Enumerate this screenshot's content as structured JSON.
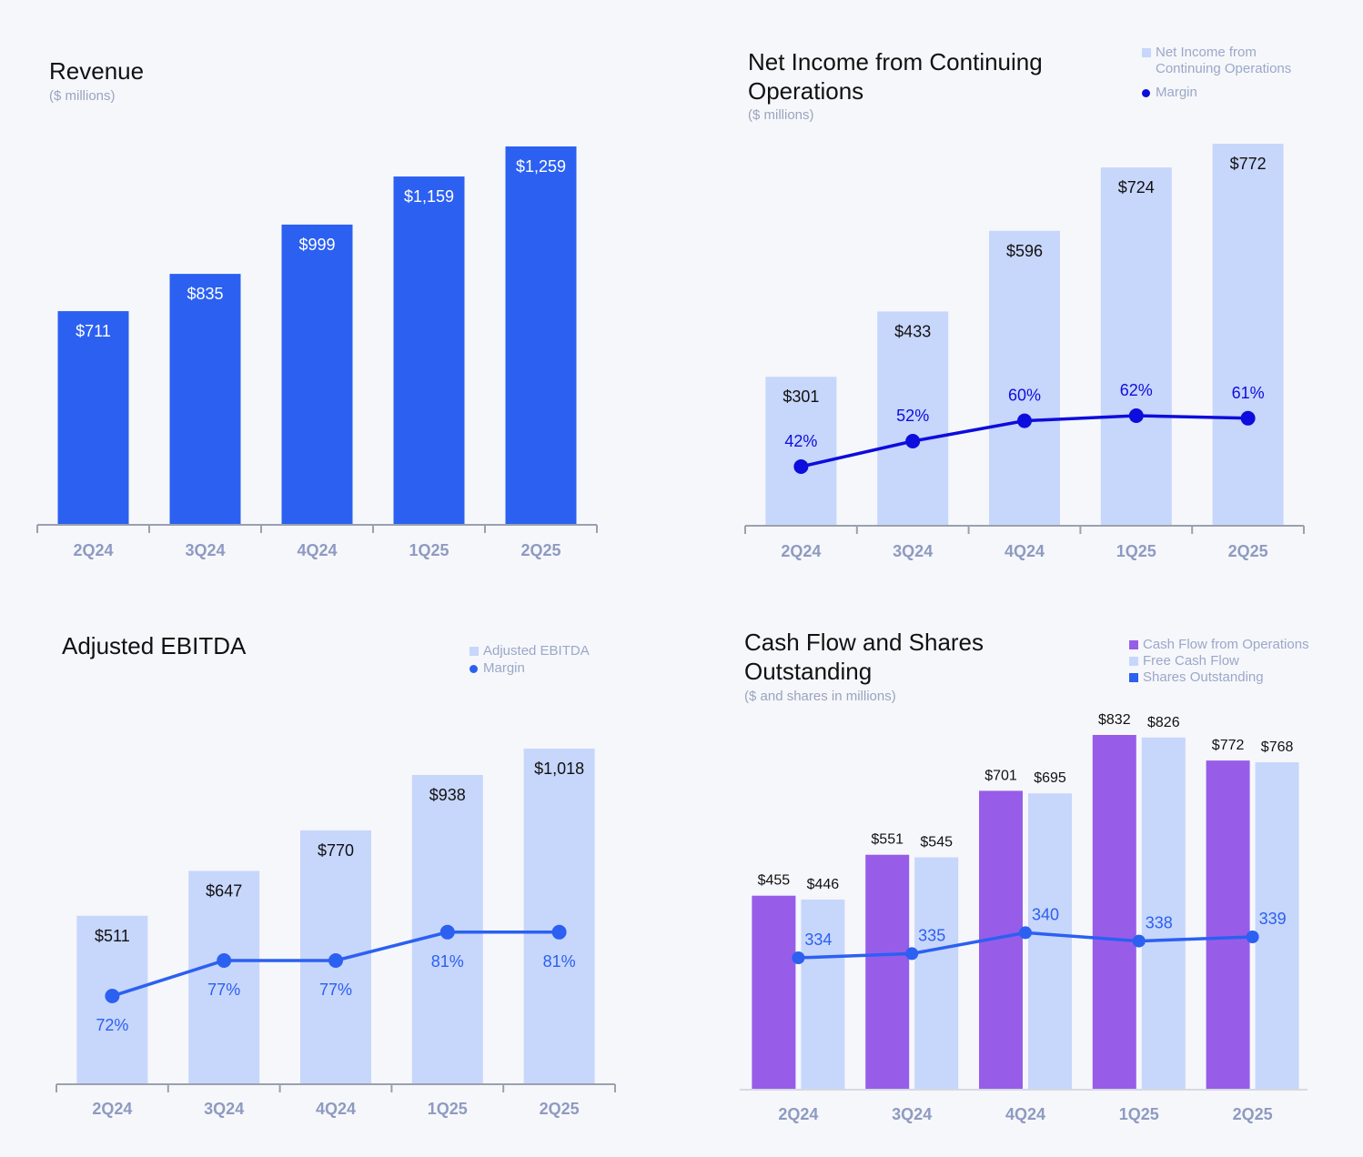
{
  "colors": {
    "revenue_bar": "#2b60f1",
    "light_bar": "#c7d6fb",
    "margin_line_dark": "#0d0ddd",
    "margin_line": "#2b60f1",
    "cfo_bar": "#975de8",
    "axis": "#9aa0ae",
    "tick_label": "#8e9ac0"
  },
  "revenue": {
    "title": "Revenue",
    "subtitle": "($ millions)"
  },
  "net_income": {
    "title_line1": "Net Income from Continuing",
    "title_line2": "Operations",
    "subtitle": "($ millions)",
    "legend": {
      "bar": "Net Income from Continuing Operations",
      "margin": "Margin"
    }
  },
  "ebitda": {
    "title": "Adjusted EBITDA",
    "legend": {
      "bar": "Adjusted EBITDA",
      "margin": "Margin"
    }
  },
  "cashflow": {
    "title_line1": "Cash Flow and Shares",
    "title_line2": "Outstanding",
    "subtitle": "($ and shares in millions)",
    "legend": {
      "cfo": "Cash Flow from Operations",
      "fcf": "Free Cash Flow",
      "shares": "Shares Outstanding"
    }
  },
  "chart_data": [
    {
      "id": "revenue",
      "type": "bar",
      "title": "Revenue",
      "subtitle": "($ millions)",
      "categories": [
        "2Q24",
        "3Q24",
        "4Q24",
        "1Q25",
        "2Q25"
      ],
      "values": [
        711,
        835,
        999,
        1159,
        1259
      ],
      "labels": [
        "$711",
        "$835",
        "$999",
        "$1,159",
        "$1,259"
      ],
      "ylim": [
        0,
        1259
      ]
    },
    {
      "id": "net_income",
      "type": "bar",
      "title": "Net Income from Continuing Operations",
      "subtitle": "($ millions)",
      "categories": [
        "2Q24",
        "3Q24",
        "4Q24",
        "1Q25",
        "2Q25"
      ],
      "series": [
        {
          "name": "Net Income from Continuing Operations",
          "values": [
            301,
            433,
            596,
            724,
            772
          ],
          "labels": [
            "$301",
            "$433",
            "$596",
            "$724",
            "$772"
          ]
        },
        {
          "name": "Margin",
          "type": "line",
          "values": [
            42,
            52,
            60,
            62,
            61
          ],
          "labels": [
            "42%",
            "52%",
            "60%",
            "62%",
            "61%"
          ]
        }
      ],
      "legend": "top-right"
    },
    {
      "id": "ebitda",
      "type": "bar",
      "title": "Adjusted EBITDA",
      "categories": [
        "2Q24",
        "3Q24",
        "4Q24",
        "1Q25",
        "2Q25"
      ],
      "series": [
        {
          "name": "Adjusted EBITDA",
          "values": [
            511,
            647,
            770,
            938,
            1018
          ],
          "labels": [
            "$511",
            "$647",
            "$770",
            "$938",
            "$1,018"
          ]
        },
        {
          "name": "Margin",
          "type": "line",
          "values": [
            72,
            77,
            77,
            81,
            81
          ],
          "labels": [
            "72%",
            "77%",
            "77%",
            "81%",
            "81%"
          ]
        }
      ],
      "legend": "top-right"
    },
    {
      "id": "cashflow",
      "type": "bar",
      "title": "Cash Flow and Shares Outstanding",
      "subtitle": "($ and shares in millions)",
      "categories": [
        "2Q24",
        "3Q24",
        "4Q24",
        "1Q25",
        "2Q25"
      ],
      "series": [
        {
          "name": "Cash Flow from Operations",
          "values": [
            455,
            551,
            701,
            832,
            772
          ],
          "labels": [
            "$455",
            "$551",
            "$701",
            "$832",
            "$772"
          ]
        },
        {
          "name": "Free Cash Flow",
          "values": [
            446,
            545,
            695,
            826,
            768
          ],
          "labels": [
            "$446",
            "$545",
            "$695",
            "$826",
            "$768"
          ]
        },
        {
          "name": "Shares Outstanding",
          "type": "line",
          "values": [
            334,
            335,
            340,
            338,
            339
          ],
          "labels": [
            "334",
            "335",
            "340",
            "338",
            "339"
          ]
        }
      ],
      "legend": "top-right"
    }
  ]
}
